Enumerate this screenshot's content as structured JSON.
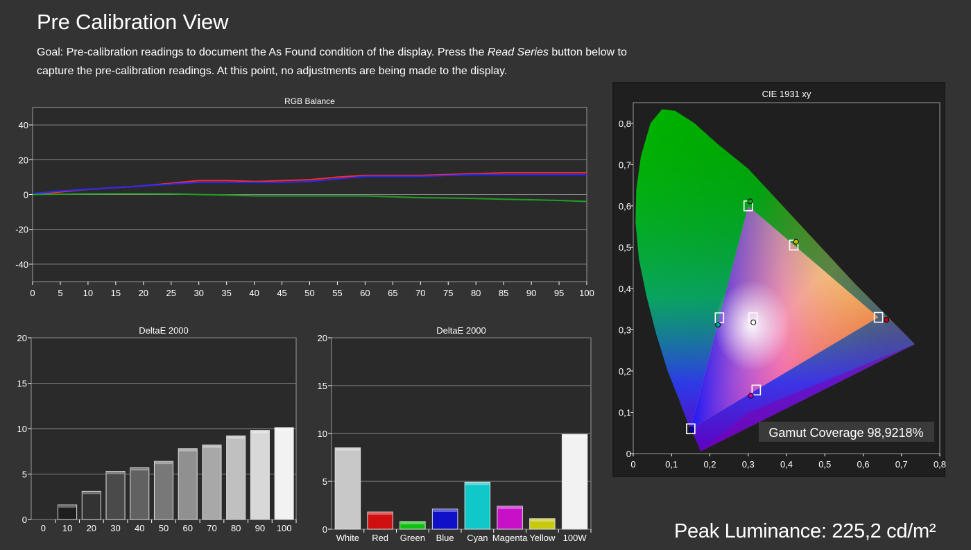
{
  "page": {
    "title": "Pre Calibration View",
    "desc_before": "Goal: Pre-calibration readings to document the As Found condition of the display. Press the ",
    "desc_em": "Read Series",
    "desc_after": " button below to capture the pre-calibration readings. At this point, no adjustments are being made to the display.",
    "peak_luminance": "Peak Luminance: 225,2 cd/m²"
  },
  "colors": {
    "background": "#333333",
    "plot_bg": "#2a2a2a",
    "grid": "#8a8a8a",
    "red": "#ff2a2a",
    "green": "#20a020",
    "blue": "#2a2aff"
  },
  "chart_data": [
    {
      "id": "rgb_balance",
      "type": "line",
      "title": "RGB Balance",
      "x": [
        0,
        5,
        10,
        15,
        20,
        25,
        30,
        35,
        40,
        45,
        50,
        55,
        60,
        65,
        70,
        75,
        80,
        85,
        90,
        95,
        100
      ],
      "xlim": [
        0,
        100
      ],
      "ylim": [
        -50,
        50
      ],
      "yticks": [
        40,
        20,
        0,
        -20,
        -40
      ],
      "xticks": [
        0,
        5,
        10,
        15,
        20,
        25,
        30,
        35,
        40,
        45,
        50,
        55,
        60,
        65,
        70,
        75,
        80,
        85,
        90,
        95,
        100
      ],
      "grid": true,
      "series": [
        {
          "name": "Red",
          "color": "#ff2a2a",
          "values": [
            0,
            1.5,
            3,
            4,
            5,
            6.5,
            8,
            8,
            7.5,
            8,
            8.5,
            10,
            11,
            11,
            11,
            11.5,
            12,
            12.5,
            12.5,
            12.5,
            12.5
          ]
        },
        {
          "name": "Blue",
          "color": "#2a2aff",
          "values": [
            0.5,
            2,
            3,
            4,
            5,
            6,
            7,
            7,
            7,
            7,
            7.5,
            9,
            10.5,
            10.5,
            10.5,
            11,
            11.5,
            11.5,
            11.5,
            11.5,
            11.5
          ]
        },
        {
          "name": "Green",
          "color": "#20a020",
          "values": [
            0,
            0.2,
            0.4,
            0.5,
            0.5,
            0.4,
            0,
            -0.3,
            -0.8,
            -0.8,
            -0.8,
            -0.8,
            -0.8,
            -1.3,
            -1.8,
            -2,
            -2.3,
            -2.7,
            -3,
            -3.4,
            -4
          ]
        }
      ]
    },
    {
      "id": "deltae_grayscale",
      "type": "bar",
      "title": "DeltaE 2000",
      "categories": [
        "0",
        "10",
        "20",
        "30",
        "40",
        "50",
        "60",
        "70",
        "80",
        "90",
        "100"
      ],
      "values": [
        0,
        1.6,
        3.1,
        5.3,
        5.7,
        6.4,
        7.8,
        8.2,
        9.2,
        9.8,
        10.1
      ],
      "colors": [
        "#000000",
        "#1e1e1e",
        "#333333",
        "#4a4a4a",
        "#616161",
        "#787878",
        "#909090",
        "#a8a8a8",
        "#c0c0c0",
        "#d8d8d8",
        "#f2f2f2"
      ],
      "ylim": [
        0,
        20
      ],
      "yticks": [
        20,
        15,
        10,
        5,
        0
      ],
      "grid": true
    },
    {
      "id": "deltae_colors",
      "type": "bar",
      "title": "DeltaE 2000",
      "categories": [
        "White",
        "Red",
        "Green",
        "Blue",
        "Cyan",
        "Magenta",
        "Yellow",
        "100W"
      ],
      "values": [
        8.5,
        1.8,
        0.8,
        2.1,
        4.9,
        2.4,
        1.1,
        9.9
      ],
      "colors": [
        "#c8c8c8",
        "#d01010",
        "#10c010",
        "#1010c8",
        "#10c8c8",
        "#c810c8",
        "#c8c810",
        "#f2f2f2"
      ],
      "ylim": [
        0,
        20
      ],
      "yticks": [
        20,
        15,
        10,
        5,
        0
      ],
      "grid": true
    },
    {
      "id": "cie_1931_xy",
      "type": "scatter",
      "title": "CIE 1931 xy",
      "xlim": [
        0,
        0.8
      ],
      "ylim": [
        0,
        0.85
      ],
      "xticks": [
        "0",
        "0,1",
        "0,2",
        "0,3",
        "0,4",
        "0,5",
        "0,6",
        "0,7",
        "0,8"
      ],
      "yticks": [
        "0",
        "0,1",
        "0,2",
        "0,3",
        "0,4",
        "0,5",
        "0,6",
        "0,7",
        "0,8"
      ],
      "targets": [
        {
          "name": "Red",
          "x": 0.64,
          "y": 0.33
        },
        {
          "name": "Green",
          "x": 0.3,
          "y": 0.6
        },
        {
          "name": "Blue",
          "x": 0.15,
          "y": 0.06
        },
        {
          "name": "Yellow",
          "x": 0.419,
          "y": 0.505
        },
        {
          "name": "Cyan",
          "x": 0.225,
          "y": 0.329
        },
        {
          "name": "Magenta",
          "x": 0.321,
          "y": 0.154
        },
        {
          "name": "White",
          "x": 0.3127,
          "y": 0.329
        }
      ],
      "measured": [
        {
          "name": "Red",
          "x": 0.661,
          "y": 0.324,
          "color": "#c00000"
        },
        {
          "name": "Green",
          "x": 0.305,
          "y": 0.611,
          "color": "#20a020"
        },
        {
          "name": "Blue",
          "x": 0.152,
          "y": 0.058,
          "color": "#0000c0"
        },
        {
          "name": "Yellow",
          "x": 0.425,
          "y": 0.513,
          "color": "#c0c000"
        },
        {
          "name": "Cyan",
          "x": 0.221,
          "y": 0.312,
          "color": "#00a0a0"
        },
        {
          "name": "Magenta",
          "x": 0.307,
          "y": 0.14,
          "color": "#c000c0"
        },
        {
          "name": "White",
          "x": 0.3135,
          "y": 0.318,
          "color": "#ffffff"
        }
      ],
      "annotation": "Gamut Coverage 98,9218%"
    }
  ]
}
